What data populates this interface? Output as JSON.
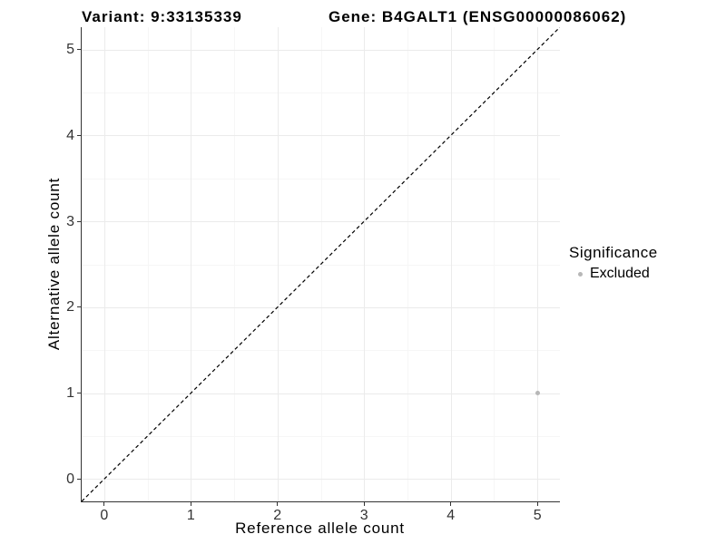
{
  "header": {
    "variant_title": "Variant: 9:33135339",
    "gene_title": "Gene: B4GALT1 (ENSG00000086062)"
  },
  "chart_data": {
    "type": "scatter",
    "title": "Variant: 9:33135339 — Gene: B4GALT1 (ENSG00000086062)",
    "xlabel": "Reference allele count",
    "ylabel": "Alternative allele count",
    "xlim": [
      -0.26,
      5.26
    ],
    "ylim": [
      -0.26,
      5.26
    ],
    "x_ticks": [
      "0",
      "1",
      "2",
      "3",
      "4",
      "5"
    ],
    "y_ticks": [
      "0",
      "1",
      "2",
      "3",
      "4",
      "5"
    ],
    "grid": "major and minor gridlines, white panel background",
    "series": [
      {
        "name": "Excluded",
        "color": "#b7b7b7",
        "points": [
          {
            "x": 5,
            "y": 1
          }
        ]
      }
    ],
    "reference_line": {
      "kind": "identity y=x",
      "style": "dashed",
      "color": "#000000"
    },
    "legend": {
      "title": "Significance",
      "position": "right",
      "entries": [
        {
          "label": "Excluded",
          "color": "#b7b7b7"
        }
      ]
    }
  },
  "colors": {
    "background": "#ffffff",
    "grid_major": "#ebebeb",
    "grid_minor": "#f6f6f6",
    "axis_line": "#333333",
    "tick_text": "#333333",
    "point": "#b7b7b7"
  }
}
